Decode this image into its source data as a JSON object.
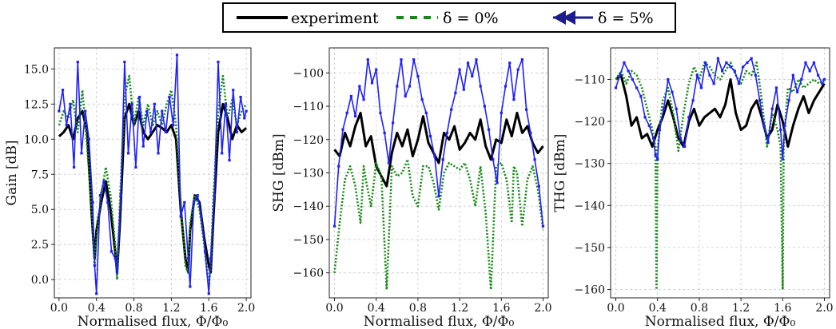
{
  "legend": {
    "experiment": "experiment",
    "delta0": "δ = 0%",
    "delta5": "δ = 5%"
  },
  "colors": {
    "experiment": "#000000",
    "delta0": "#138a13",
    "delta5": "#1f1fff",
    "legend_delta5_arrow": "#1c1c8c",
    "grid": "#c8c8c8"
  },
  "chart_data": [
    {
      "type": "line",
      "xlabel": "Normalised flux, Φ/Φ₀",
      "ylabel": "Gain [dB]",
      "xlim": [
        -0.05,
        2.05
      ],
      "ylim": [
        -1.3,
        16.5
      ],
      "xticks": [
        0.0,
        0.4,
        0.8,
        1.2,
        1.6,
        2.0
      ],
      "xtick_labels": [
        "0.0",
        "0.4",
        "0.8",
        "1.2",
        "1.6",
        "2.0"
      ],
      "yticks": [
        0.0,
        2.5,
        5.0,
        7.5,
        10.0,
        12.5,
        15.0
      ],
      "ytick_labels": [
        "0.0",
        "2.5",
        "5.0",
        "7.5",
        "10.0",
        "12.5",
        "15.0"
      ],
      "grid": true,
      "series": [
        {
          "name": "experiment",
          "x": [
            0.0,
            0.05,
            0.1,
            0.15,
            0.2,
            0.25,
            0.3,
            0.35,
            0.38,
            0.4,
            0.45,
            0.5,
            0.55,
            0.6,
            0.62,
            0.65,
            0.7,
            0.75,
            0.8,
            0.85,
            0.9,
            0.95,
            1.0,
            1.05,
            1.1,
            1.15,
            1.2,
            1.25,
            1.3,
            1.35,
            1.38,
            1.4,
            1.45,
            1.5,
            1.55,
            1.6,
            1.62,
            1.65,
            1.7,
            1.75,
            1.8,
            1.85,
            1.9,
            1.95,
            2.0
          ],
          "y": [
            10.2,
            10.5,
            11.0,
            10.0,
            11.5,
            12.0,
            10.5,
            4.5,
            1.5,
            3.5,
            5.5,
            7.0,
            5.0,
            2.0,
            0.5,
            4.0,
            11.5,
            12.5,
            11.0,
            12.0,
            10.5,
            10.0,
            10.5,
            11.0,
            10.8,
            10.5,
            11.0,
            10.0,
            5.0,
            1.5,
            0.5,
            3.5,
            6.0,
            5.5,
            3.0,
            1.0,
            0.5,
            4.5,
            10.5,
            12.5,
            11.5,
            10.0,
            11.0,
            10.5,
            10.8
          ]
        },
        {
          "name": "δ = 0%",
          "x": [
            0.0,
            0.05,
            0.1,
            0.15,
            0.2,
            0.25,
            0.3,
            0.35,
            0.38,
            0.4,
            0.45,
            0.5,
            0.55,
            0.6,
            0.62,
            0.65,
            0.7,
            0.75,
            0.8,
            0.85,
            0.9,
            0.95,
            1.0,
            1.05,
            1.1,
            1.15,
            1.2,
            1.25,
            1.3,
            1.35,
            1.38,
            1.4,
            1.45,
            1.5,
            1.55,
            1.6,
            1.62,
            1.65,
            1.7,
            1.75,
            1.8,
            1.85,
            1.9,
            1.95,
            2.0
          ],
          "y": [
            11.0,
            12.0,
            11.5,
            12.8,
            10.5,
            13.5,
            9.5,
            5.0,
            1.0,
            3.0,
            6.0,
            8.0,
            6.0,
            2.5,
            0.0,
            5.5,
            13.0,
            14.5,
            11.0,
            13.0,
            11.0,
            12.5,
            11.0,
            12.0,
            11.0,
            12.5,
            13.5,
            11.0,
            5.5,
            1.0,
            0.5,
            4.0,
            6.0,
            5.0,
            2.5,
            -0.5,
            1.0,
            6.0,
            12.0,
            14.5,
            11.5,
            12.8,
            11.0,
            12.0,
            12.5
          ]
        },
        {
          "name": "δ = 5%",
          "x": [
            0.0,
            0.04,
            0.08,
            0.12,
            0.16,
            0.2,
            0.24,
            0.28,
            0.32,
            0.36,
            0.38,
            0.4,
            0.44,
            0.48,
            0.52,
            0.56,
            0.6,
            0.62,
            0.66,
            0.7,
            0.74,
            0.78,
            0.82,
            0.86,
            0.9,
            0.94,
            0.98,
            1.02,
            1.06,
            1.1,
            1.14,
            1.18,
            1.22,
            1.26,
            1.3,
            1.34,
            1.38,
            1.4,
            1.44,
            1.48,
            1.52,
            1.56,
            1.6,
            1.62,
            1.66,
            1.7,
            1.74,
            1.78,
            1.82,
            1.86,
            1.9,
            1.94,
            1.98,
            2.0
          ],
          "y": [
            12.0,
            13.5,
            11.0,
            12.5,
            8.0,
            15.5,
            9.0,
            12.0,
            10.0,
            5.5,
            1.0,
            -1.0,
            6.0,
            7.0,
            5.5,
            2.0,
            1.5,
            0.5,
            6.0,
            15.5,
            9.0,
            12.5,
            8.0,
            13.0,
            9.5,
            12.0,
            10.5,
            12.5,
            9.0,
            12.0,
            10.5,
            13.0,
            11.0,
            16.0,
            4.5,
            5.5,
            1.5,
            -0.5,
            5.5,
            6.0,
            4.5,
            2.0,
            -1.0,
            1.5,
            6.0,
            15.5,
            9.0,
            12.5,
            8.5,
            13.5,
            10.5,
            13.0,
            11.5,
            12.0
          ]
        }
      ]
    },
    {
      "type": "line",
      "xlabel": "Normalised flux, Φ/Φ₀",
      "ylabel": "SHG [dBm]",
      "xlim": [
        -0.05,
        2.05
      ],
      "ylim": [
        -167.5,
        -92.5
      ],
      "xticks": [
        0.0,
        0.4,
        0.8,
        1.2,
        1.6,
        2.0
      ],
      "xtick_labels": [
        "0.0",
        "0.4",
        "0.8",
        "1.2",
        "1.6",
        "2.0"
      ],
      "yticks": [
        -160,
        -150,
        -140,
        -130,
        -120,
        -110,
        -100
      ],
      "ytick_labels": [
        "−160",
        "−150",
        "−140",
        "−130",
        "−120",
        "−110",
        "−100"
      ],
      "grid": true,
      "series": [
        {
          "name": "experiment",
          "x": [
            0.0,
            0.05,
            0.1,
            0.15,
            0.2,
            0.25,
            0.3,
            0.35,
            0.4,
            0.45,
            0.5,
            0.55,
            0.6,
            0.65,
            0.7,
            0.75,
            0.8,
            0.85,
            0.9,
            0.95,
            1.0,
            1.05,
            1.1,
            1.15,
            1.2,
            1.25,
            1.3,
            1.35,
            1.4,
            1.45,
            1.5,
            1.55,
            1.6,
            1.65,
            1.7,
            1.75,
            1.8,
            1.85,
            1.9,
            1.95,
            2.0
          ],
          "y": [
            -123,
            -125,
            -118,
            -122,
            -116,
            -112,
            -122,
            -119,
            -128,
            -131,
            -134,
            -124,
            -118,
            -122,
            -117,
            -125,
            -120,
            -113,
            -121,
            -124,
            -127,
            -118,
            -120,
            -116,
            -123,
            -121,
            -118,
            -120,
            -114,
            -122,
            -126,
            -120,
            -121,
            -114,
            -119,
            -112,
            -118,
            -116,
            -121,
            -124,
            -122
          ]
        },
        {
          "name": "δ = 0%",
          "x": [
            0.0,
            0.05,
            0.1,
            0.15,
            0.2,
            0.25,
            0.28,
            0.3,
            0.35,
            0.4,
            0.45,
            0.5,
            0.55,
            0.6,
            0.65,
            0.7,
            0.75,
            0.8,
            0.85,
            0.9,
            0.95,
            1.0,
            1.05,
            1.1,
            1.15,
            1.2,
            1.25,
            1.3,
            1.35,
            1.4,
            1.45,
            1.5,
            1.55,
            1.6,
            1.65,
            1.7,
            1.72,
            1.75,
            1.8,
            1.85,
            1.9,
            1.95,
            2.0
          ],
          "y": [
            -160,
            -145,
            -132,
            -128,
            -134,
            -145,
            -128,
            -132,
            -140,
            -127,
            -131,
            -165,
            -128,
            -131,
            -130,
            -126,
            -137,
            -140,
            -128,
            -128,
            -133,
            -141,
            -130,
            -127,
            -128,
            -129,
            -127,
            -132,
            -140,
            -128,
            -142,
            -165,
            -128,
            -127,
            -132,
            -145,
            -128,
            -130,
            -146,
            -132,
            -128,
            -135,
            -147
          ]
        },
        {
          "name": "δ = 5%",
          "x": [
            0.0,
            0.04,
            0.08,
            0.12,
            0.16,
            0.2,
            0.24,
            0.28,
            0.32,
            0.36,
            0.4,
            0.44,
            0.48,
            0.52,
            0.56,
            0.6,
            0.64,
            0.68,
            0.72,
            0.76,
            0.8,
            0.84,
            0.88,
            0.92,
            0.96,
            1.0,
            1.04,
            1.08,
            1.12,
            1.16,
            1.2,
            1.24,
            1.28,
            1.32,
            1.36,
            1.4,
            1.44,
            1.48,
            1.52,
            1.56,
            1.6,
            1.64,
            1.68,
            1.72,
            1.76,
            1.8,
            1.84,
            1.88,
            1.92,
            1.96,
            2.0
          ],
          "y": [
            -146,
            -128,
            -117,
            -112,
            -107,
            -113,
            -104,
            -108,
            -96,
            -103,
            -99,
            -112,
            -118,
            -127,
            -115,
            -104,
            -96,
            -107,
            -104,
            -96,
            -101,
            -108,
            -112,
            -119,
            -125,
            -137,
            -126,
            -118,
            -111,
            -106,
            -99,
            -105,
            -97,
            -101,
            -96,
            -104,
            -110,
            -117,
            -126,
            -133,
            -112,
            -104,
            -97,
            -108,
            -99,
            -96,
            -111,
            -118,
            -126,
            -134,
            -146
          ]
        }
      ]
    },
    {
      "type": "line",
      "xlabel": "Normalised flux, Φ/Φ₀",
      "ylabel": "THG [dBm]",
      "xlim": [
        -0.05,
        2.05
      ],
      "ylim": [
        -162,
        -102.5
      ],
      "xticks": [
        0.0,
        0.4,
        0.8,
        1.2,
        1.6,
        2.0
      ],
      "xtick_labels": [
        "0.0",
        "0.4",
        "0.8",
        "1.2",
        "1.6",
        "2.0"
      ],
      "yticks": [
        -160,
        -150,
        -140,
        -130,
        -120,
        -110
      ],
      "ytick_labels": [
        "−160",
        "−150",
        "−140",
        "−130",
        "−120",
        "−110"
      ],
      "grid": true,
      "series": [
        {
          "name": "experiment",
          "x": [
            0.0,
            0.05,
            0.1,
            0.15,
            0.2,
            0.25,
            0.3,
            0.35,
            0.4,
            0.45,
            0.5,
            0.55,
            0.6,
            0.65,
            0.7,
            0.75,
            0.8,
            0.85,
            0.9,
            0.95,
            1.0,
            1.05,
            1.1,
            1.15,
            1.2,
            1.25,
            1.3,
            1.35,
            1.4,
            1.45,
            1.5,
            1.55,
            1.6,
            1.65,
            1.7,
            1.75,
            1.8,
            1.85,
            1.9,
            1.95,
            2.0
          ],
          "y": [
            -110,
            -109,
            -114,
            -121,
            -119,
            -124,
            -123,
            -126,
            -122,
            -119,
            -115,
            -119,
            -124,
            -126,
            -120,
            -117,
            -121,
            -119,
            -118,
            -117,
            -119,
            -116,
            -110,
            -118,
            -122,
            -121,
            -117,
            -115,
            -119,
            -124,
            -122,
            -116,
            -120,
            -126,
            -121,
            -117,
            -114,
            -118,
            -115,
            -113,
            -111
          ]
        },
        {
          "name": "δ = 0%",
          "x": [
            0.0,
            0.05,
            0.1,
            0.15,
            0.2,
            0.25,
            0.3,
            0.35,
            0.38,
            0.39,
            0.4,
            0.42,
            0.45,
            0.5,
            0.55,
            0.6,
            0.65,
            0.7,
            0.75,
            0.8,
            0.85,
            0.9,
            0.95,
            1.0,
            1.05,
            1.1,
            1.15,
            1.2,
            1.25,
            1.3,
            1.35,
            1.4,
            1.45,
            1.5,
            1.55,
            1.58,
            1.6,
            1.61,
            1.62,
            1.65,
            1.7,
            1.75,
            1.8,
            1.85,
            1.9,
            1.95,
            2.0
          ],
          "y": [
            -110,
            -108,
            -111,
            -108,
            -109,
            -112,
            -117,
            -122,
            -126,
            -160,
            -127,
            -122,
            -115,
            -112,
            -118,
            -127,
            -118,
            -111,
            -107,
            -110,
            -106,
            -107,
            -109,
            -110,
            -108,
            -106,
            -109,
            -111,
            -108,
            -109,
            -106,
            -115,
            -126,
            -118,
            -122,
            -126,
            -160,
            -125,
            -122,
            -112,
            -113,
            -110,
            -112,
            -111,
            -110,
            -111,
            -110
          ]
        },
        {
          "name": "δ = 5%",
          "x": [
            0.0,
            0.04,
            0.08,
            0.12,
            0.16,
            0.2,
            0.24,
            0.28,
            0.32,
            0.36,
            0.38,
            0.4,
            0.42,
            0.46,
            0.5,
            0.54,
            0.58,
            0.62,
            0.66,
            0.7,
            0.74,
            0.78,
            0.82,
            0.86,
            0.9,
            0.94,
            0.98,
            1.02,
            1.06,
            1.1,
            1.14,
            1.18,
            1.22,
            1.26,
            1.3,
            1.34,
            1.38,
            1.42,
            1.46,
            1.5,
            1.54,
            1.58,
            1.6,
            1.62,
            1.66,
            1.7,
            1.74,
            1.78,
            1.82,
            1.86,
            1.9,
            1.94,
            1.98,
            2.0
          ],
          "y": [
            -112,
            -109,
            -106,
            -108,
            -110,
            -112,
            -114,
            -119,
            -121,
            -124,
            -128,
            -129,
            -122,
            -117,
            -110,
            -113,
            -117,
            -124,
            -126,
            -119,
            -115,
            -109,
            -112,
            -106,
            -109,
            -111,
            -105,
            -108,
            -106,
            -107,
            -108,
            -111,
            -107,
            -106,
            -105,
            -109,
            -115,
            -121,
            -125,
            -117,
            -112,
            -122,
            -129,
            -121,
            -115,
            -109,
            -113,
            -110,
            -106,
            -108,
            -106,
            -109,
            -111,
            -110
          ]
        }
      ]
    }
  ]
}
